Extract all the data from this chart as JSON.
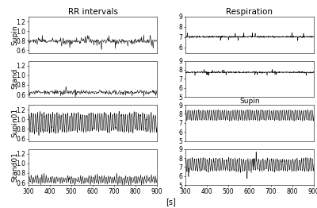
{
  "title_left": "RR intervals",
  "title_right": "Respiration",
  "xlabel": "[s]",
  "x_start": 300,
  "x_end": 900,
  "x_ticks": [
    300,
    400,
    500,
    600,
    700,
    800,
    900
  ],
  "panels_left": [
    {
      "ylabel": "Supin",
      "ylim": [
        0.55,
        1.3
      ],
      "yticks": [
        0.6,
        0.8,
        1.0,
        1.2
      ],
      "mean": 0.79,
      "noise_std": 0.03,
      "freq_mod": 0.0,
      "amp_mod": 0.0,
      "n_points": 300,
      "spike_prob": 0.03,
      "spike_amp": 0.12
    },
    {
      "ylabel": "Stand",
      "ylim": [
        0.55,
        1.3
      ],
      "yticks": [
        0.6,
        0.8,
        1.0,
        1.2
      ],
      "mean": 0.645,
      "noise_std": 0.025,
      "freq_mod": 0.0,
      "amp_mod": 0.0,
      "n_points": 300,
      "spike_prob": 0.025,
      "spike_amp": 0.1
    },
    {
      "ylabel": "Supin01",
      "ylim": [
        0.55,
        1.3
      ],
      "yticks": [
        0.6,
        0.8,
        1.0,
        1.2
      ],
      "mean": 0.93,
      "noise_std": 0.03,
      "freq_mod": 0.1,
      "amp_mod": 0.18,
      "n_points": 600,
      "spike_prob": 0.0,
      "spike_amp": 0.0
    },
    {
      "ylabel": "Stand01",
      "ylim": [
        0.55,
        1.3
      ],
      "yticks": [
        0.6,
        0.8,
        1.0,
        1.2
      ],
      "mean": 0.66,
      "noise_std": 0.025,
      "freq_mod": 0.1,
      "amp_mod": 0.07,
      "n_points": 300,
      "spike_prob": 0.025,
      "spike_amp": 0.06
    }
  ],
  "panels_right": [
    {
      "ylabel": "",
      "ylim": [
        5.5,
        9.0
      ],
      "yticks": [
        6,
        7,
        8,
        9
      ],
      "mean": 7.05,
      "noise_std": 0.04,
      "freq_mod": 0.0,
      "amp_mod": 0.0,
      "n_points": 600,
      "spike_prob": 0.015,
      "spike_amp": 0.35,
      "xlabel_inner": ""
    },
    {
      "ylabel": "",
      "ylim": [
        5.0,
        9.0
      ],
      "yticks": [
        5,
        6,
        7,
        8,
        9
      ],
      "mean": 7.72,
      "noise_std": 0.04,
      "freq_mod": 0.0,
      "amp_mod": 0.0,
      "n_points": 600,
      "spike_prob": 0.015,
      "spike_amp": 0.3,
      "xlabel_inner": "Supin"
    },
    {
      "ylabel": "",
      "ylim": [
        5.0,
        9.0
      ],
      "yticks": [
        5,
        6,
        7,
        8,
        9
      ],
      "mean": 7.85,
      "noise_std": 0.04,
      "freq_mod": 0.1,
      "amp_mod": 0.55,
      "n_points": 600,
      "spike_prob": 0.0,
      "spike_amp": 0.0,
      "xlabel_inner": ""
    },
    {
      "ylabel": "",
      "ylim": [
        5.0,
        9.0
      ],
      "yticks": [
        5,
        6,
        7,
        8,
        9
      ],
      "mean": 7.25,
      "noise_std": 0.1,
      "freq_mod": 0.1,
      "amp_mod": 0.65,
      "n_points": 600,
      "spike_prob": 0.008,
      "spike_amp": 1.2,
      "xlabel_inner": ""
    }
  ],
  "line_color": "#000000",
  "line_width": 0.4,
  "bg_color": "#ffffff",
  "tick_fontsize": 5.5,
  "label_fontsize": 6.5,
  "title_fontsize": 7.5
}
